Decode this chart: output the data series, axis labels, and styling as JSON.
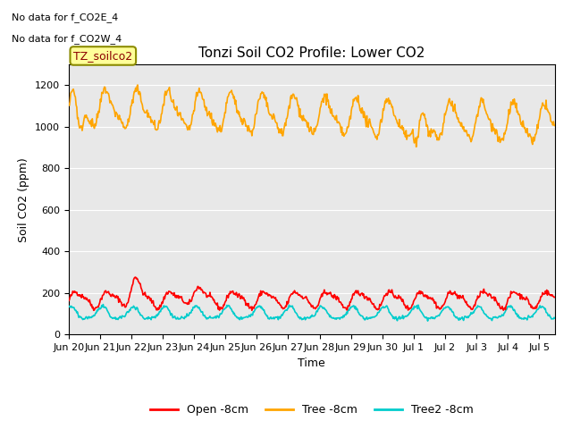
{
  "title": "Tonzi Soil CO2 Profile: Lower CO2",
  "xlabel": "Time",
  "ylabel": "Soil CO2 (ppm)",
  "ylim": [
    0,
    1300
  ],
  "yticks": [
    0,
    200,
    400,
    600,
    800,
    1000,
    1200
  ],
  "background_color": "#e8e8e8",
  "no_data_text": [
    "No data for f_CO2E_4",
    "No data for f_CO2W_4"
  ],
  "annotation_box": "TZ_soilco2",
  "legend_entries": [
    "Open -8cm",
    "Tree -8cm",
    "Tree2 -8cm"
  ],
  "open_color": "#ff0000",
  "tree_color": "#ffa500",
  "tree2_color": "#00cccc",
  "line_width": 1.2,
  "n_points": 720,
  "tick_labels": [
    "Jun 20",
    "Jun 21",
    "Jun 22",
    "Jun 23",
    "Jun 24",
    "Jun 25",
    "Jun 26",
    "Jun 27",
    "Jun 28",
    "Jun 29",
    "Jun 30",
    "Jul 1",
    "Jul 2",
    "Jul 3",
    "Jul 4",
    "Jul 5"
  ],
  "tick_positions": [
    0,
    1,
    2,
    3,
    4,
    5,
    6,
    7,
    8,
    9,
    10,
    11,
    12,
    13,
    14,
    15
  ]
}
